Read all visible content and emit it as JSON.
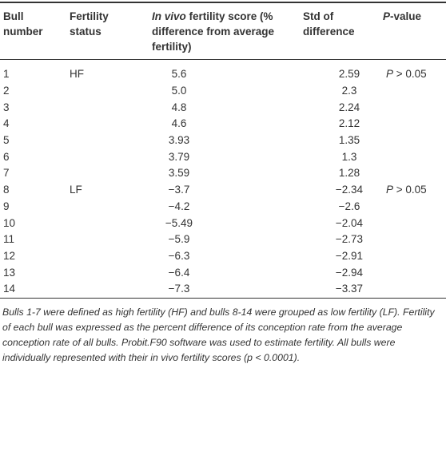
{
  "table": {
    "header": [
      [
        "Bull number"
      ],
      [
        "Fertility status"
      ],
      [
        "In vivo",
        " fertility score (% difference from average fertility)"
      ],
      [
        "Std of difference"
      ],
      [
        "P",
        "-value"
      ]
    ],
    "rows": [
      {
        "bull": "1",
        "status": "HF",
        "score": "5.6",
        "std": "2.59",
        "p": [
          "P",
          " > 0.05"
        ]
      },
      {
        "bull": "2",
        "score": "5.0",
        "std": "2.3"
      },
      {
        "bull": "3",
        "score": "4.8",
        "std": "2.24"
      },
      {
        "bull": "4",
        "score": "4.6",
        "std": "2.12"
      },
      {
        "bull": "5",
        "score": "3.93",
        "std": "1.35"
      },
      {
        "bull": "6",
        "score": "3.79",
        "std": "1.3"
      },
      {
        "bull": "7",
        "score": "3.59",
        "std": "1.28"
      },
      {
        "bull": "8",
        "status": "LF",
        "score": "−3.7",
        "std": "−2.34",
        "p": [
          "P",
          " > 0.05"
        ]
      },
      {
        "bull": "9",
        "score": "−4.2",
        "std": "−2.6"
      },
      {
        "bull": "10",
        "score": "−5.49",
        "std": "−2.04"
      },
      {
        "bull": "11",
        "score": "−5.9",
        "std": "−2.73"
      },
      {
        "bull": "12",
        "score": "−6.3",
        "std": "−2.91"
      },
      {
        "bull": "13",
        "score": "−6.4",
        "std": "−2.94"
      },
      {
        "bull": "14",
        "score": "−7.3",
        "std": "−3.37"
      }
    ]
  },
  "footnote": "Bulls 1-7 were defined as high fertility (HF) and bulls 8-14 were grouped as low fertility (LF). Fertility of each bull was expressed as the percent difference of its conception rate from the average conception rate of all bulls. Probit.F90 software was used to estimate fertility. All bulls were individually represented with their in vivo fertility scores (p < 0.0001)."
}
